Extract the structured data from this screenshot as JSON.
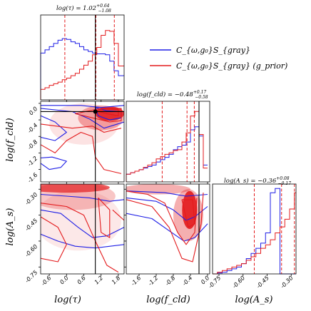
{
  "chart_data": {
    "type": "corner",
    "colors": {
      "blue": "#1f1fe6",
      "red": "#e31a1c",
      "truth": "#000000",
      "fill": "#e31a1c"
    },
    "legend": {
      "placement": "top-right",
      "entries": [
        {
          "label": "C_{ω,g₀}S_{gray}",
          "color": "#1f1fe6"
        },
        {
          "label": "C_{ω,g₀}S_{gray} (g_prior)",
          "color": "#e31a1c"
        }
      ]
    },
    "parameters": [
      {
        "name": "tau",
        "label": "log(τ)",
        "range": [
          -0.9,
          2.0
        ],
        "ticks": [
          "-0.6",
          "0.0",
          "0.6",
          "1.2",
          "1.8"
        ],
        "tick_values": [
          -0.6,
          0.0,
          0.6,
          1.2,
          1.8
        ],
        "truth": 1.0,
        "title": "log(τ) = 1.02",
        "median": 1.02,
        "err_plus": "+0.64",
        "err_minus": "−1.08",
        "quantiles": [
          -0.06,
          1.02,
          1.66
        ]
      },
      {
        "name": "fcld",
        "label": "log(f_cld)",
        "range": [
          -1.9,
          0.05
        ],
        "ticks": [
          "-1.6",
          "-1.2",
          "-0.8",
          "-0.4",
          "0.0"
        ],
        "tick_values": [
          -1.6,
          -1.2,
          -0.8,
          -0.4,
          0.0
        ],
        "truth": -0.2,
        "title": "log(f_cld) = −0.48",
        "median": -0.48,
        "err_plus": "+0.17",
        "err_minus": "−0.58",
        "quantiles": [
          -1.06,
          -0.48,
          -0.31
        ]
      },
      {
        "name": "As",
        "label": "log(A_s)",
        "range": [
          -0.79,
          -0.27
        ],
        "ticks": [
          "-0.75",
          "-0.60",
          "-0.45",
          "-0.30"
        ],
        "tick_values": [
          -0.75,
          -0.6,
          -0.45,
          -0.3
        ],
        "truth": null,
        "title": "log(A_s) = −0.36",
        "median": -0.36,
        "err_plus": "+0.08",
        "err_minus": "−0.17",
        "quantiles": [
          -0.53,
          -0.36,
          -0.28
        ]
      }
    ],
    "hist": {
      "tau": {
        "x": [
          -0.9,
          -0.75,
          -0.6,
          -0.45,
          -0.3,
          -0.15,
          0.0,
          0.15,
          0.3,
          0.45,
          0.6,
          0.75,
          0.9,
          1.05,
          1.2,
          1.35,
          1.5,
          1.65,
          1.8,
          2.0
        ],
        "blue": [
          0.58,
          0.62,
          0.66,
          0.7,
          0.74,
          0.76,
          0.75,
          0.72,
          0.7,
          0.66,
          0.62,
          0.6,
          0.58,
          0.57,
          0.57,
          0.56,
          0.48,
          0.36,
          0.3
        ],
        "red": [
          0.13,
          0.15,
          0.18,
          0.2,
          0.22,
          0.25,
          0.27,
          0.3,
          0.33,
          0.38,
          0.43,
          0.48,
          0.56,
          0.65,
          0.8,
          0.86,
          0.85,
          0.7,
          0.42
        ]
      },
      "fcld": {
        "x": [
          -1.9,
          -1.8,
          -1.7,
          -1.6,
          -1.5,
          -1.4,
          -1.3,
          -1.2,
          -1.1,
          -1.0,
          -0.9,
          -0.8,
          -0.7,
          -0.6,
          -0.5,
          -0.4,
          -0.3,
          -0.2,
          -0.1,
          0.0
        ],
        "blue": [
          0.1,
          0.12,
          0.14,
          0.16,
          0.18,
          0.2,
          0.22,
          0.26,
          0.29,
          0.32,
          0.36,
          0.42,
          0.46,
          0.48,
          0.52,
          0.68,
          0.72,
          0.6,
          0.22
        ],
        "red": [
          0.1,
          0.12,
          0.14,
          0.16,
          0.19,
          0.22,
          0.25,
          0.3,
          0.33,
          0.36,
          0.38,
          0.41,
          0.42,
          0.52,
          0.64,
          0.86,
          0.92,
          0.62,
          0.18
        ]
      },
      "As": {
        "x": [
          -0.79,
          -0.76,
          -0.73,
          -0.7,
          -0.67,
          -0.64,
          -0.61,
          -0.58,
          -0.55,
          -0.52,
          -0.49,
          -0.46,
          -0.43,
          -0.4,
          -0.37,
          -0.34,
          -0.31,
          -0.28,
          -0.27
        ],
        "blue": [
          0.0,
          0.01,
          0.02,
          0.04,
          0.06,
          0.08,
          0.12,
          0.18,
          0.24,
          0.3,
          0.36,
          0.48,
          0.95,
          1.0,
          0.0,
          0.0,
          0.0,
          0.0
        ],
        "red": [
          0.0,
          0.02,
          0.04,
          0.06,
          0.08,
          0.1,
          0.12,
          0.16,
          0.2,
          0.24,
          0.3,
          0.34,
          0.4,
          0.48,
          0.55,
          0.64,
          0.76,
          0.95
        ]
      }
    },
    "contours": {
      "fcld_vs_tau": {
        "blue": [
          [
            [
              -0.9,
              -0.05
            ],
            [
              0.5,
              -0.05
            ],
            [
              1.2,
              -0.1
            ],
            [
              2.0,
              -0.05
            ]
          ],
          [
            [
              -0.9,
              -0.12
            ],
            [
              0.2,
              -0.2
            ],
            [
              0.8,
              -0.38
            ],
            [
              1.3,
              -0.6
            ],
            [
              2.0,
              -0.45
            ]
          ],
          [
            [
              -0.9,
              -0.3
            ],
            [
              -0.4,
              -0.45
            ],
            [
              0.0,
              -0.7
            ],
            [
              -0.4,
              -0.9
            ],
            [
              -0.9,
              -0.82
            ]
          ],
          [
            [
              -0.9,
              -1.45
            ],
            [
              -0.6,
              -1.6
            ],
            [
              -0.2,
              -1.55
            ],
            [
              0.0,
              -1.4
            ],
            [
              -0.5,
              -1.3
            ],
            [
              -0.9,
              -1.32
            ]
          ],
          [
            [
              1.0,
              -0.1
            ],
            [
              1.4,
              -0.18
            ],
            [
              1.9,
              -0.2
            ],
            [
              1.9,
              -0.35
            ],
            [
              1.5,
              -0.4
            ],
            [
              1.1,
              -0.3
            ],
            [
              1.0,
              -0.1
            ]
          ]
        ],
        "red": [
          [
            [
              -0.9,
              -1.0
            ],
            [
              -0.4,
              -1.2
            ],
            [
              0.0,
              -0.9
            ],
            [
              0.5,
              -0.7
            ],
            [
              0.9,
              -0.8
            ],
            [
              1.0,
              -1.3
            ],
            [
              1.3,
              -1.6
            ],
            [
              1.9,
              -1.7
            ]
          ],
          [
            [
              -0.9,
              -0.5
            ],
            [
              0.2,
              -0.6
            ],
            [
              0.9,
              -0.55
            ],
            [
              1.3,
              -0.7
            ],
            [
              1.9,
              -0.6
            ]
          ],
          [
            [
              0.3,
              -0.25
            ],
            [
              0.9,
              -0.35
            ],
            [
              1.5,
              -0.45
            ],
            [
              1.9,
              -0.42
            ],
            [
              1.9,
              -0.12
            ],
            [
              1.2,
              -0.12
            ],
            [
              0.3,
              -0.25
            ]
          ],
          [
            [
              1.0,
              -0.18
            ],
            [
              1.4,
              -0.25
            ],
            [
              1.8,
              -0.3
            ],
            [
              1.8,
              -0.15
            ],
            [
              1.3,
              -0.13
            ],
            [
              1.0,
              -0.18
            ]
          ]
        ],
        "fill": [
          {
            "x": 1.5,
            "y": -0.25,
            "w": 1.0,
            "h": 0.35,
            "a": 0.85
          },
          {
            "x": 1.2,
            "y": -0.35,
            "w": 1.6,
            "h": 0.6,
            "a": 0.35
          },
          {
            "x": 0.6,
            "y": -0.5,
            "w": 2.4,
            "h": 1.0,
            "a": 0.12
          }
        ]
      },
      "As_vs_tau": {
        "blue": [
          [
            [
              -0.9,
              -0.33
            ],
            [
              0.0,
              -0.34
            ],
            [
              0.8,
              -0.35
            ],
            [
              1.5,
              -0.37
            ],
            [
              2.0,
              -0.36
            ]
          ],
          [
            [
              -0.9,
              -0.42
            ],
            [
              -0.2,
              -0.44
            ],
            [
              0.4,
              -0.52
            ],
            [
              0.9,
              -0.58
            ],
            [
              1.4,
              -0.57
            ],
            [
              2.0,
              -0.52
            ]
          ],
          [
            [
              -0.9,
              -0.56
            ],
            [
              -0.3,
              -0.6
            ],
            [
              0.3,
              -0.63
            ],
            [
              1.0,
              -0.64
            ],
            [
              2.0,
              -0.62
            ]
          ]
        ],
        "red": [
          [
            [
              -0.9,
              -0.38
            ],
            [
              0.0,
              -0.4
            ],
            [
              0.6,
              -0.45
            ],
            [
              1.0,
              -0.6
            ],
            [
              1.4,
              -0.74
            ],
            [
              1.8,
              -0.78
            ]
          ],
          [
            [
              -0.9,
              -0.46
            ],
            [
              -0.3,
              -0.52
            ],
            [
              0.0,
              -0.62
            ],
            [
              -0.3,
              -0.72
            ],
            [
              -0.9,
              -0.7
            ]
          ],
          [
            [
              1.1,
              -0.35
            ],
            [
              1.5,
              -0.42
            ],
            [
              1.5,
              -0.58
            ],
            [
              1.2,
              -0.55
            ],
            [
              1.1,
              -0.35
            ]
          ],
          [
            [
              1.6,
              -0.42
            ],
            [
              2.0,
              -0.48
            ]
          ]
        ],
        "fill": [
          {
            "x": 0.0,
            "y": -0.29,
            "w": 3.0,
            "h": 0.06,
            "a": 0.7
          },
          {
            "x": 0.2,
            "y": -0.34,
            "w": 3.0,
            "h": 0.16,
            "a": 0.25
          },
          {
            "x": 0.4,
            "y": -0.48,
            "w": 3.0,
            "h": 0.35,
            "a": 0.1
          }
        ]
      },
      "As_vs_fcld": {
        "blue": [
          [
            [
              -1.9,
              -0.31
            ],
            [
              -1.0,
              -0.32
            ],
            [
              -0.5,
              -0.34
            ],
            [
              0.0,
              -0.33
            ]
          ],
          [
            [
              -1.9,
              -0.35
            ],
            [
              -1.2,
              -0.37
            ],
            [
              -0.8,
              -0.42
            ],
            [
              -0.5,
              -0.48
            ],
            [
              -0.3,
              -0.46
            ],
            [
              0.0,
              -0.4
            ]
          ],
          [
            [
              -1.9,
              -0.44
            ],
            [
              -1.3,
              -0.47
            ],
            [
              -0.9,
              -0.54
            ],
            [
              -0.55,
              -0.6
            ],
            [
              -0.3,
              -0.58
            ],
            [
              0.0,
              -0.5
            ]
          ]
        ],
        "red": [
          [
            [
              -1.9,
              -0.36
            ],
            [
              -1.3,
              -0.4
            ],
            [
              -0.9,
              -0.52
            ],
            [
              -0.6,
              -0.7
            ],
            [
              -0.35,
              -0.72
            ],
            [
              -0.15,
              -0.5
            ],
            [
              -0.1,
              -0.32
            ]
          ],
          [
            [
              -1.9,
              -0.31
            ],
            [
              -1.4,
              -0.33
            ],
            [
              -1.0,
              -0.38
            ],
            [
              -0.7,
              -0.55
            ],
            [
              -0.5,
              -0.62
            ],
            [
              -0.3,
              -0.55
            ],
            [
              -0.25,
              -0.35
            ]
          ],
          [
            [
              -0.6,
              -0.36
            ],
            [
              -0.45,
              -0.52
            ],
            [
              -0.3,
              -0.5
            ],
            [
              -0.35,
              -0.36
            ],
            [
              -0.6,
              -0.36
            ]
          ]
        ],
        "fill": [
          {
            "x": -0.42,
            "y": -0.42,
            "w": 0.35,
            "h": 0.22,
            "a": 0.9
          },
          {
            "x": -0.45,
            "y": -0.45,
            "w": 0.7,
            "h": 0.3,
            "a": 0.35
          },
          {
            "x": -1.2,
            "y": -0.3,
            "w": 1.6,
            "h": 0.06,
            "a": 0.35
          }
        ]
      }
    }
  }
}
